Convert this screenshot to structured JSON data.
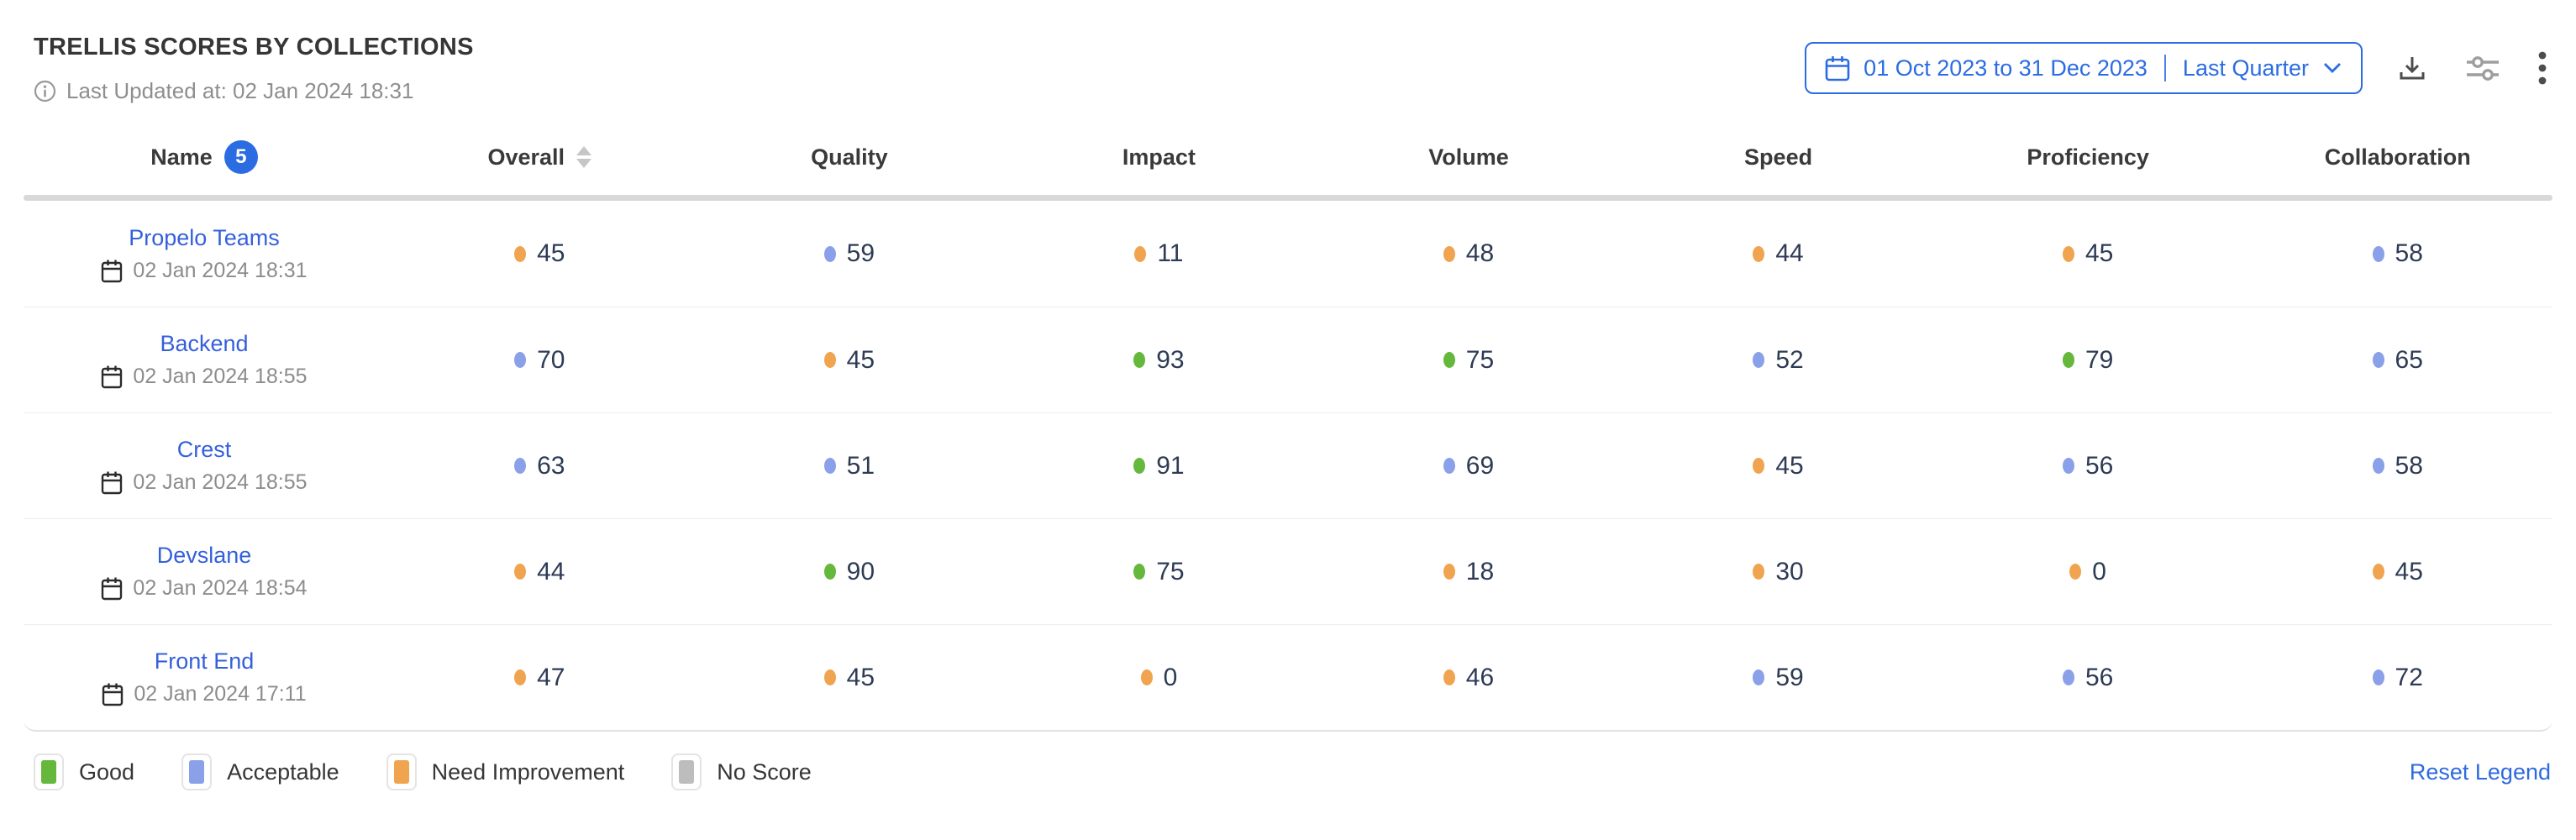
{
  "header": {
    "title": "TRELLIS SCORES BY COLLECTIONS",
    "last_updated": "Last Updated at: 02 Jan 2024 18:31"
  },
  "toolbar": {
    "date_range_label": "01 Oct 2023 to 31 Dec 2023",
    "date_preset_label": "Last Quarter"
  },
  "table": {
    "columns": [
      "Name",
      "Overall",
      "Quality",
      "Impact",
      "Volume",
      "Speed",
      "Proficiency",
      "Collaboration"
    ],
    "name_badge_count": "5",
    "rows": [
      {
        "name": "Propelo Teams",
        "date": "02 Jan 2024 18:31",
        "scores": [
          {
            "value": 45,
            "status": "need_improvement"
          },
          {
            "value": 59,
            "status": "acceptable"
          },
          {
            "value": 11,
            "status": "need_improvement"
          },
          {
            "value": 48,
            "status": "need_improvement"
          },
          {
            "value": 44,
            "status": "need_improvement"
          },
          {
            "value": 45,
            "status": "need_improvement"
          },
          {
            "value": 58,
            "status": "acceptable"
          }
        ]
      },
      {
        "name": "Backend",
        "date": "02 Jan 2024 18:55",
        "scores": [
          {
            "value": 70,
            "status": "acceptable"
          },
          {
            "value": 45,
            "status": "need_improvement"
          },
          {
            "value": 93,
            "status": "good"
          },
          {
            "value": 75,
            "status": "good"
          },
          {
            "value": 52,
            "status": "acceptable"
          },
          {
            "value": 79,
            "status": "good"
          },
          {
            "value": 65,
            "status": "acceptable"
          }
        ]
      },
      {
        "name": "Crest",
        "date": "02 Jan 2024 18:55",
        "scores": [
          {
            "value": 63,
            "status": "acceptable"
          },
          {
            "value": 51,
            "status": "acceptable"
          },
          {
            "value": 91,
            "status": "good"
          },
          {
            "value": 69,
            "status": "acceptable"
          },
          {
            "value": 45,
            "status": "need_improvement"
          },
          {
            "value": 56,
            "status": "acceptable"
          },
          {
            "value": 58,
            "status": "acceptable"
          }
        ]
      },
      {
        "name": "Devslane",
        "date": "02 Jan 2024 18:54",
        "scores": [
          {
            "value": 44,
            "status": "need_improvement"
          },
          {
            "value": 90,
            "status": "good"
          },
          {
            "value": 75,
            "status": "good"
          },
          {
            "value": 18,
            "status": "need_improvement"
          },
          {
            "value": 30,
            "status": "need_improvement"
          },
          {
            "value": 0,
            "status": "need_improvement"
          },
          {
            "value": 45,
            "status": "need_improvement"
          }
        ]
      },
      {
        "name": "Front End",
        "date": "02 Jan 2024 17:11",
        "scores": [
          {
            "value": 47,
            "status": "need_improvement"
          },
          {
            "value": 45,
            "status": "need_improvement"
          },
          {
            "value": 0,
            "status": "need_improvement"
          },
          {
            "value": 46,
            "status": "need_improvement"
          },
          {
            "value": 59,
            "status": "acceptable"
          },
          {
            "value": 56,
            "status": "acceptable"
          },
          {
            "value": 72,
            "status": "acceptable"
          }
        ]
      }
    ]
  },
  "legend": {
    "items": [
      {
        "label": "Good",
        "status": "good"
      },
      {
        "label": "Acceptable",
        "status": "acceptable"
      },
      {
        "label": "Need Improvement",
        "status": "need_improvement"
      },
      {
        "label": "No Score",
        "status": "no_score"
      }
    ],
    "reset_label": "Reset Legend"
  },
  "colors": {
    "good": "#65b83c",
    "acceptable": "#8aa0e8",
    "need_improvement": "#f0a44f",
    "no_score": "#bdbdbd",
    "link": "#3560dc",
    "accent": "#2b6ce2",
    "score_text": "#2d3b55"
  }
}
